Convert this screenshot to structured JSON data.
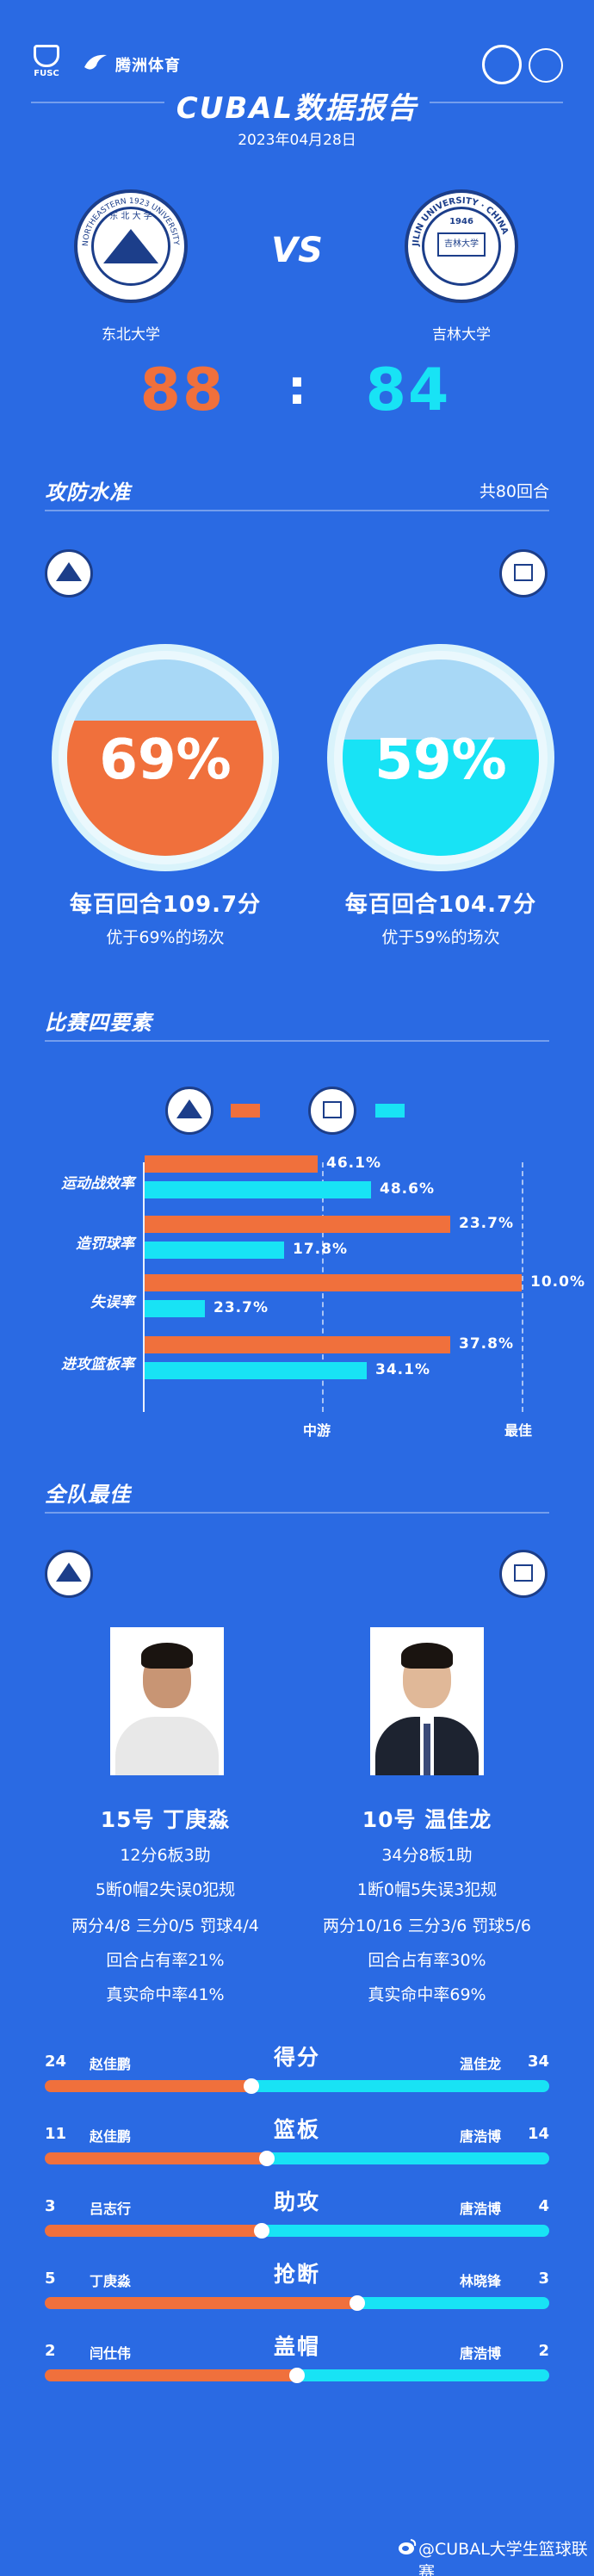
{
  "header": {
    "fusc_text": "FUSC",
    "brand": "腾洲体育",
    "title": "CUBAL数据报告",
    "date": "2023年04月28日"
  },
  "match": {
    "home": {
      "name": "东北大学",
      "score": "88",
      "logo_ring": "NORTHEASTERN 1923 UNIVERSITY",
      "logo_top": "东 北 大 学"
    },
    "away": {
      "name": "吉林大学",
      "score": "84",
      "logo_ring": "JILIN UNIVERSITY · CHINA",
      "logo_year": "1946",
      "logo_seal": "吉林大学"
    },
    "vs": "VS",
    "colon": ":"
  },
  "colors": {
    "background": "#2a6ae3",
    "home": "#f0703c",
    "away": "#18e3f5",
    "dark_blue": "#1c3e8a"
  },
  "offense_defense": {
    "title": "攻防水准",
    "rounds": "共80回合",
    "home": {
      "pct_value": 69,
      "pct": "69%",
      "label": "每百回合109.7分",
      "sub": "优于69%的场次"
    },
    "away": {
      "pct_value": 59,
      "pct": "59%",
      "label": "每百回合104.7分",
      "sub": "优于59%的场次"
    }
  },
  "four_factors": {
    "title": "比赛四要素",
    "axis_mid": "中游",
    "axis_best": "最佳",
    "rows": [
      {
        "label": "运动战效率",
        "home": "46.1%",
        "away": "48.6%",
        "home_level": 0.46,
        "away_level": 0.6
      },
      {
        "label": "造罚球率",
        "home": "23.7%",
        "away": "17.8%",
        "home_level": 0.81,
        "away_level": 0.37
      },
      {
        "label": "失误率",
        "home": "10.0%",
        "away": "23.7%",
        "home_level": 1.0,
        "away_level": 0.16
      },
      {
        "label": "进攻篮板率",
        "home": "37.8%",
        "away": "34.1%",
        "home_level": 0.81,
        "away_level": 0.59
      }
    ]
  },
  "best": {
    "title": "全队最佳",
    "home": {
      "name": "15号  丁庚淼",
      "line1": "12分6板3助",
      "line2": "5断0帽2失误0犯规",
      "line3": "两分4/8 三分0/5 罚球4/4",
      "line4": "回合占有率21%",
      "line5": "真实命中率41%"
    },
    "away": {
      "name": "10号  温佳龙",
      "line1": "34分8板1助",
      "line2": "1断0帽5失误3犯规",
      "line3": "两分10/16 三分3/6 罚球5/6",
      "line4": "回合占有率30%",
      "line5": "真实命中率69%"
    }
  },
  "leaders": [
    {
      "title": "得分",
      "home_val": "24",
      "home_name": "赵佳鹏",
      "away_name": "温佳龙",
      "away_val": "34",
      "home_share": 0.41
    },
    {
      "title": "篮板",
      "home_val": "11",
      "home_name": "赵佳鹏",
      "away_name": "唐浩博",
      "away_val": "14",
      "home_share": 0.44
    },
    {
      "title": "助攻",
      "home_val": "3",
      "home_name": "吕志行",
      "away_name": "唐浩博",
      "away_val": "4",
      "home_share": 0.43
    },
    {
      "title": "抢断",
      "home_val": "5",
      "home_name": "丁庚淼",
      "away_name": "林晓锋",
      "away_val": "3",
      "home_share": 0.62
    },
    {
      "title": "盖帽",
      "home_val": "2",
      "home_name": "闫仕伟",
      "away_name": "唐浩博",
      "away_val": "2",
      "home_share": 0.5
    }
  ],
  "footer": "@CUBAL大学生篮球联赛"
}
